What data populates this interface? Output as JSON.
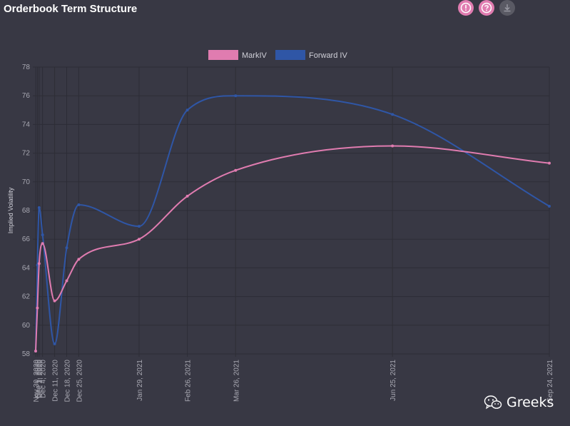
{
  "header": {
    "title": "Orderbook Term Structure",
    "icons": [
      "info-icon",
      "help-icon",
      "download-icon"
    ]
  },
  "colors": {
    "background": "#383844",
    "markiv": "#e07cb0",
    "forward": "#2f56a6",
    "grid": "#2d2d36",
    "tick_text": "#a8a8b2"
  },
  "watermark": {
    "text": "Greeks"
  },
  "chart_data": {
    "type": "line",
    "title": "Orderbook Term Structure",
    "ylabel": "Implied Volatility",
    "xlabel": "",
    "ylim": [
      58,
      78
    ],
    "yticks": [
      58,
      60,
      62,
      64,
      66,
      68,
      70,
      72,
      74,
      76,
      78
    ],
    "grid": true,
    "legend": "top-center",
    "x_ticks": [
      "Nov 30, 2020",
      "Dec 1, 2020",
      "Dec 2, 2020",
      "Dec 4, 2020",
      "Dec 11, 2020",
      "Dec 18, 2020",
      "Dec 25, 2020",
      "Jan 29, 2021",
      "Feb 26, 2021",
      "Mar 26, 2021",
      "Jun 25, 2021",
      "Sep 24, 2021"
    ],
    "series": [
      {
        "name": "MarkIV",
        "x": [
          "Nov 30, 2020",
          "Dec 1, 2020",
          "Dec 2, 2020",
          "Dec 4, 2020",
          "Dec 11, 2020",
          "Dec 18, 2020",
          "Dec 25, 2020",
          "Jan 29, 2021",
          "Feb 26, 2021",
          "Mar 26, 2021",
          "Jun 25, 2021",
          "Sep 24, 2021"
        ],
        "values": [
          58.2,
          61.2,
          64.3,
          65.7,
          61.7,
          63.1,
          64.6,
          66.0,
          69.0,
          70.8,
          72.5,
          71.3
        ]
      },
      {
        "name": "Forward IV",
        "x": [
          "Nov 30, 2020",
          "Dec 1, 2020",
          "Dec 2, 2020",
          "Dec 4, 2020",
          "Dec 11, 2020",
          "Dec 18, 2020",
          "Dec 25, 2020",
          "Jan 29, 2021",
          "Feb 26, 2021",
          "Mar 26, 2021",
          "Jun 25, 2021",
          "Sep 24, 2021"
        ],
        "values": [
          58.2,
          64.2,
          68.2,
          66.3,
          58.7,
          65.4,
          68.4,
          66.9,
          75.0,
          76.0,
          74.7,
          68.3
        ]
      }
    ]
  }
}
